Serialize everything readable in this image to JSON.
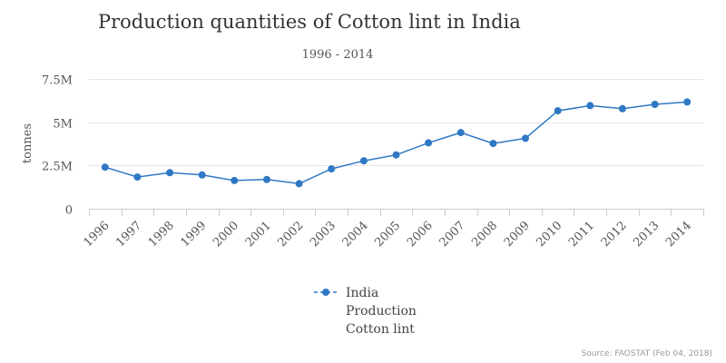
{
  "chart_data": {
    "type": "line",
    "title": "Production quantities of Cotton lint in India",
    "subtitle": "1996 - 2014",
    "xlabel": "",
    "ylabel": "tonnes",
    "categories": [
      "1996",
      "1997",
      "1998",
      "1999",
      "2000",
      "2001",
      "2002",
      "2003",
      "2004",
      "2005",
      "2006",
      "2007",
      "2008",
      "2009",
      "2010",
      "2011",
      "2012",
      "2013",
      "2014"
    ],
    "series": [
      {
        "name": "India Production Cotton lint",
        "legend_lines": [
          "India",
          "Production",
          "Cotton lint"
        ],
        "color": "#2f78c4",
        "values": [
          2400000,
          1830000,
          2080000,
          1950000,
          1630000,
          1690000,
          1450000,
          2300000,
          2770000,
          3110000,
          3810000,
          4400000,
          3770000,
          4070000,
          5660000,
          5960000,
          5780000,
          6030000,
          6170000
        ]
      }
    ],
    "ylim": [
      0,
      7500000
    ],
    "yticks": [
      {
        "value": 0,
        "label": "0"
      },
      {
        "value": 2500000,
        "label": "2.5M"
      },
      {
        "value": 5000000,
        "label": "5M"
      },
      {
        "value": 7500000,
        "label": "7.5M"
      }
    ],
    "grid": true,
    "legend_position": "bottom-center",
    "source": "Source: FAOSTAT (Feb 04, 2018)"
  }
}
